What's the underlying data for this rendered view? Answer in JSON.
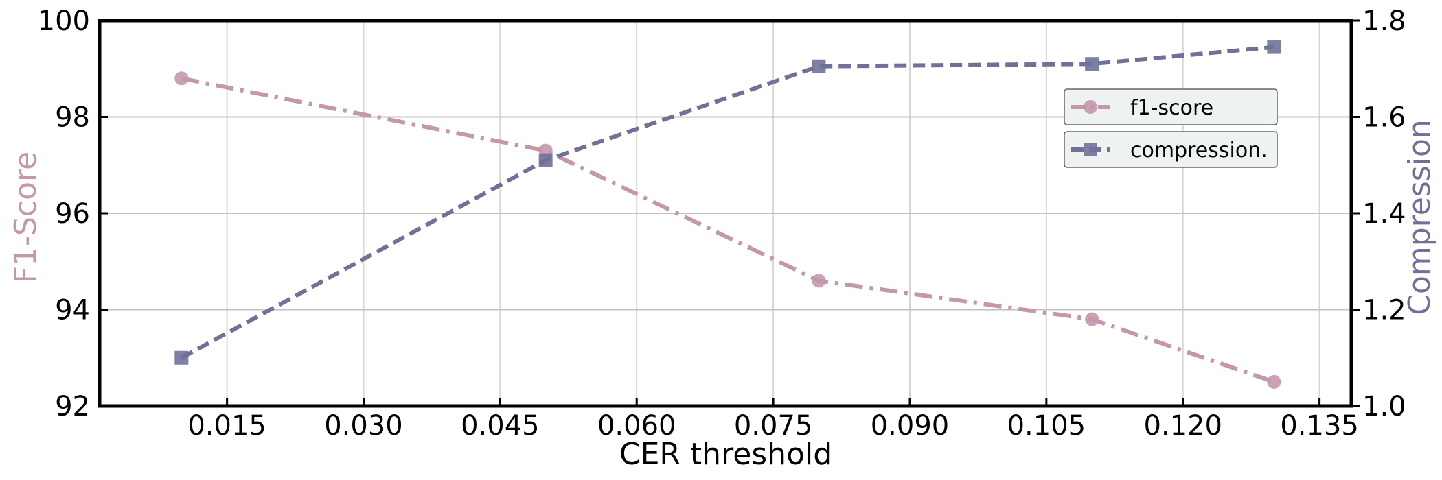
{
  "chart_data": {
    "type": "line",
    "title": "",
    "xlabel": "CER threshold",
    "ylabel_left": "F1-Score",
    "ylabel_right": "Compression",
    "xlim": [
      0.001,
      0.1385
    ],
    "ylim_left": [
      92,
      100
    ],
    "ylim_right": [
      1.0,
      1.8
    ],
    "x_ticks": [
      "0.015",
      "0.030",
      "0.045",
      "0.060",
      "0.075",
      "0.090",
      "0.105",
      "0.120",
      "0.135"
    ],
    "y_left_ticks": [
      "92",
      "94",
      "96",
      "98",
      "100"
    ],
    "y_right_ticks": [
      "1.0",
      "1.2",
      "1.4",
      "1.6",
      "1.8"
    ],
    "grid": true,
    "legend_position": "upper-right",
    "series": [
      {
        "name": "f1-score",
        "axis": "left",
        "color": "#c497ad",
        "marker": "circle",
        "linestyle": "dash-dot",
        "x": [
          0.01,
          0.05,
          0.08,
          0.11,
          0.13
        ],
        "values": [
          98.8,
          97.3,
          94.6,
          93.8,
          92.5
        ]
      },
      {
        "name": "compression.",
        "axis": "right",
        "color": "#6f7199",
        "marker": "square",
        "linestyle": "dashed",
        "x": [
          0.01,
          0.05,
          0.08,
          0.11,
          0.13
        ],
        "values": [
          1.1,
          1.51,
          1.705,
          1.71,
          1.745
        ]
      }
    ]
  }
}
